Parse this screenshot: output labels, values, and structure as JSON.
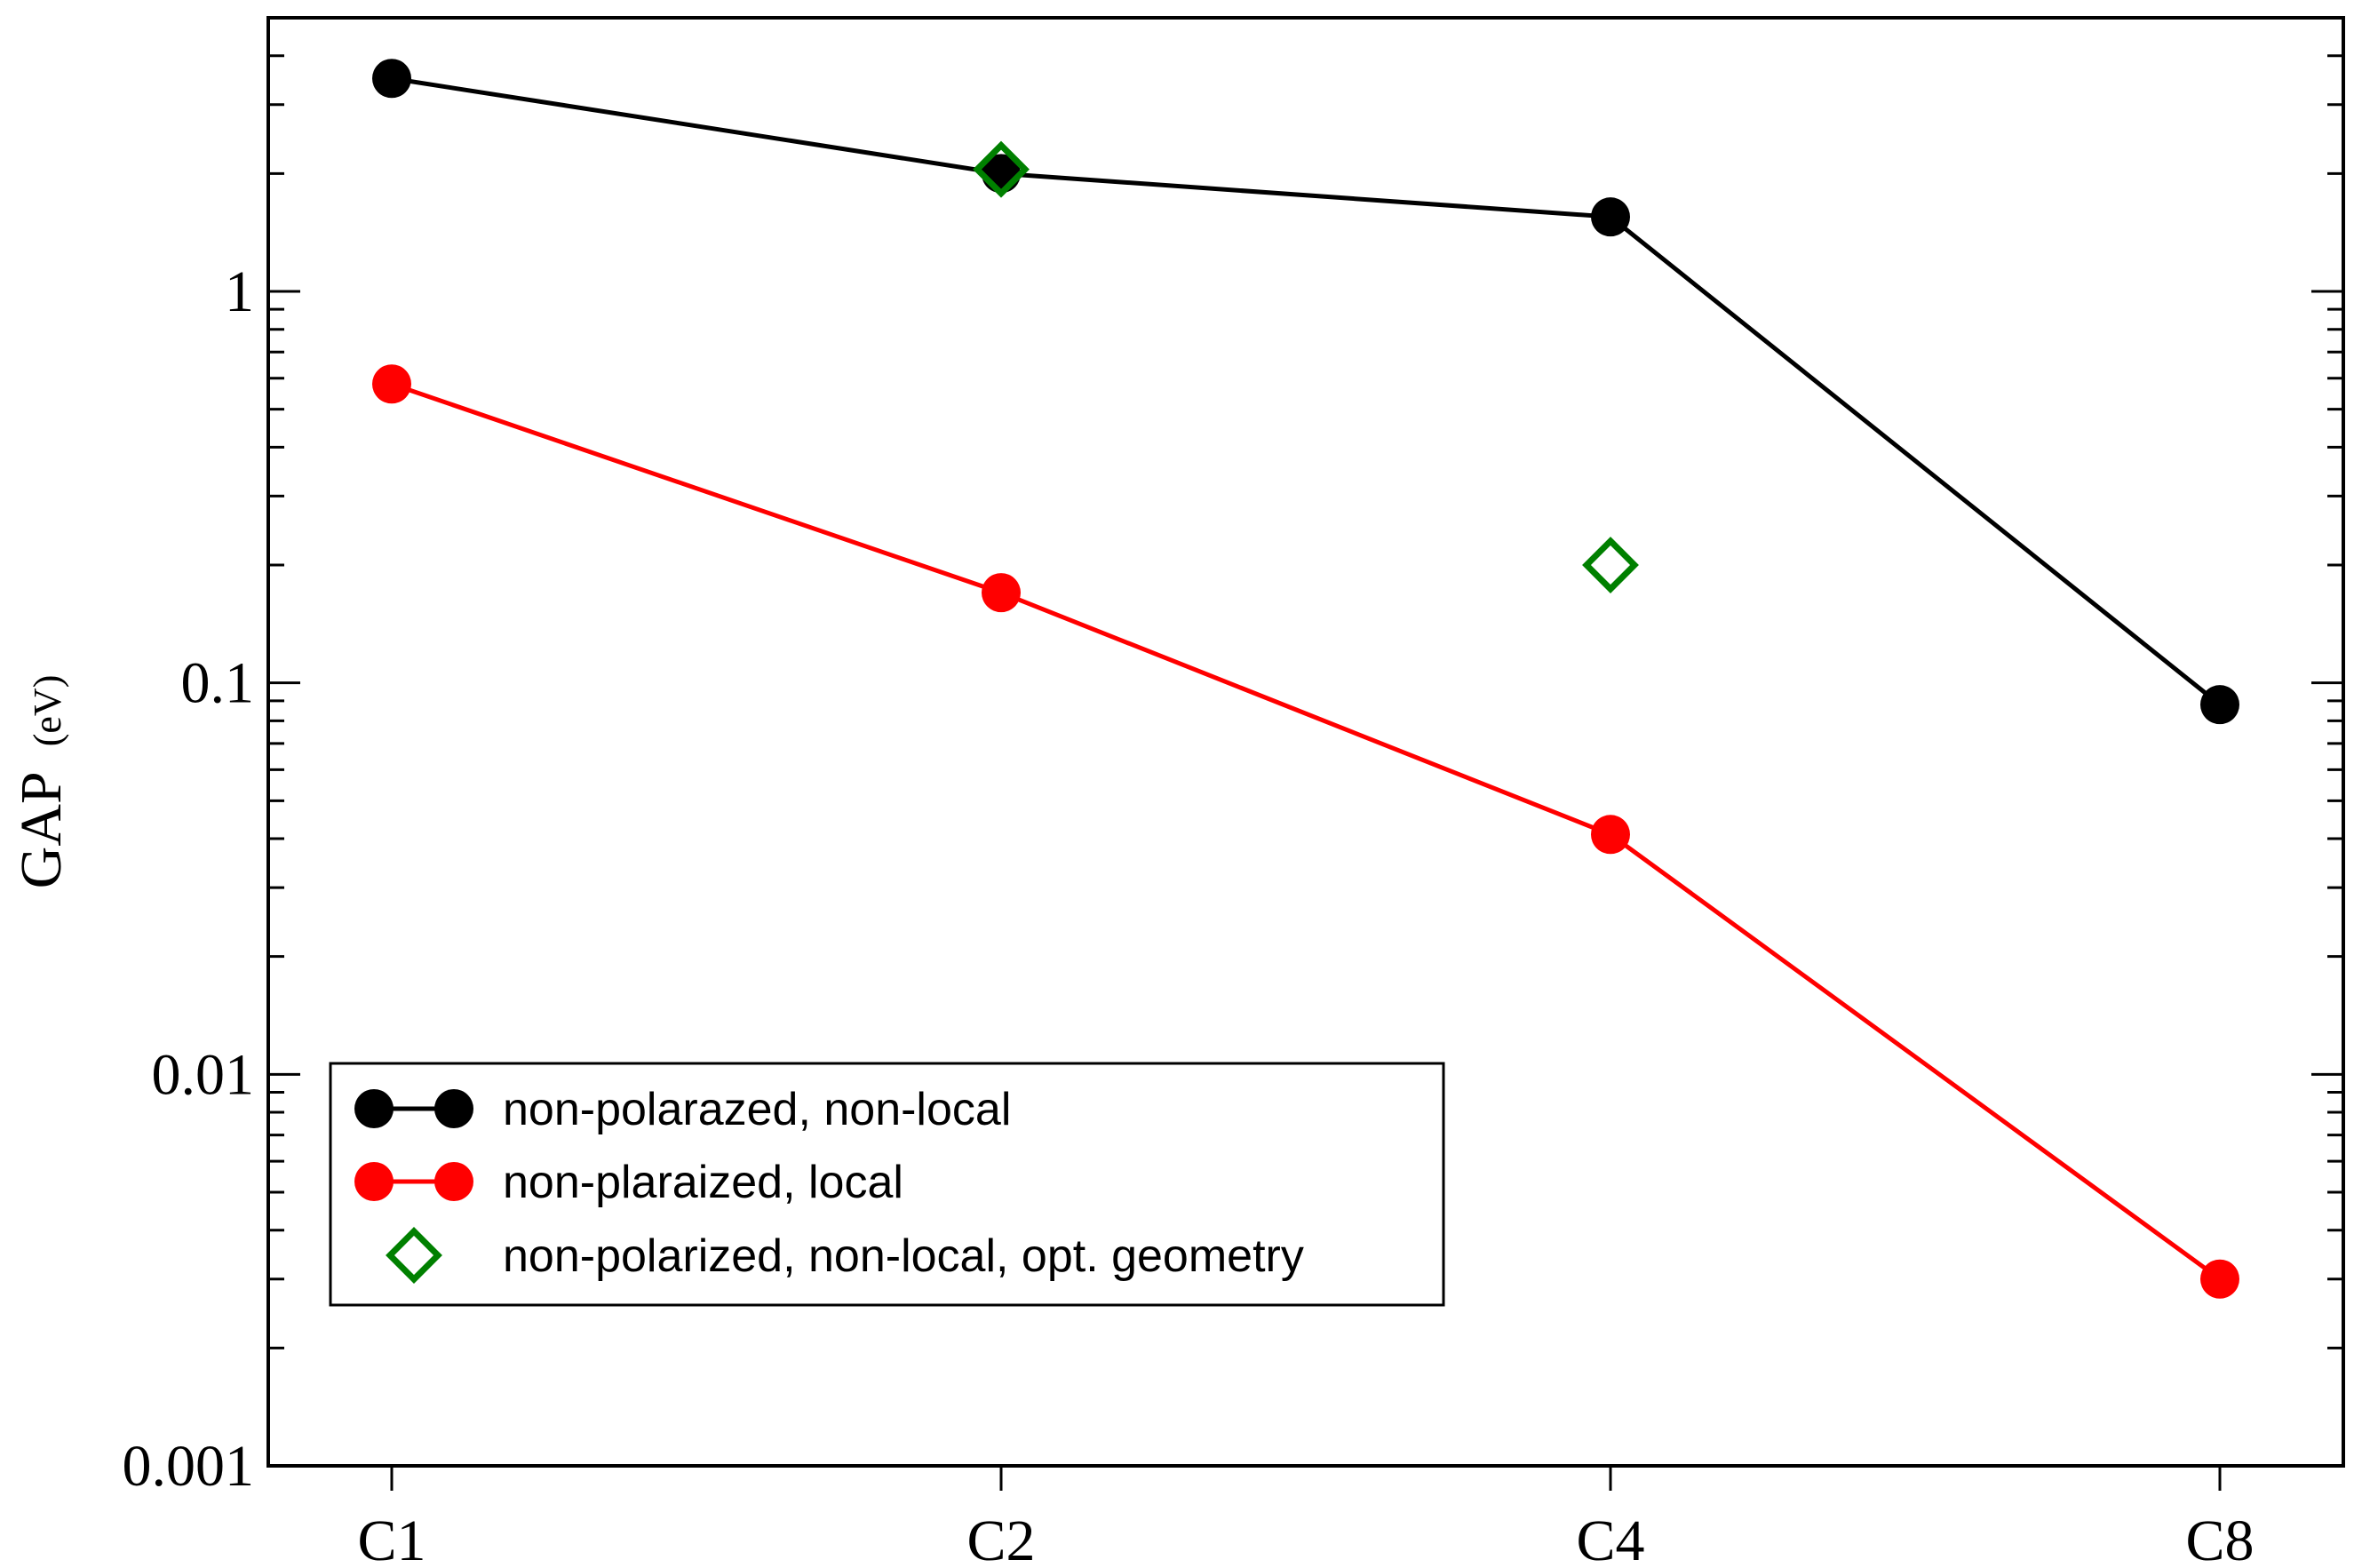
{
  "chart_data": {
    "type": "line",
    "title": "",
    "xlabel": "",
    "ylabel": "GAP",
    "ylabel_unit": "(eV)",
    "yscale": "log",
    "ylim": [
      0.001,
      5.0
    ],
    "categories": [
      "C1",
      "C2",
      "C4",
      "C8"
    ],
    "yticks": [
      0.001,
      0.01,
      0.1,
      1
    ],
    "ytick_labels": [
      "0.001",
      "0.01",
      "0.1",
      "1"
    ],
    "grid": false,
    "legend_position": "bottom-left",
    "series": [
      {
        "name": "non-polarazed, non-local",
        "color": "#000000",
        "marker": "filled-circle",
        "line": true,
        "x": [
          "C1",
          "C2",
          "C4",
          "C8"
        ],
        "values": [
          3.5,
          2.0,
          1.55,
          0.088
        ]
      },
      {
        "name": "non-plaraized, local",
        "color": "#ff0000",
        "marker": "filled-circle",
        "line": true,
        "x": [
          "C1",
          "C2",
          "C4",
          "C8"
        ],
        "values": [
          0.58,
          0.17,
          0.041,
          0.003
        ]
      },
      {
        "name": "non-polarized, non-local, opt. geometry",
        "color": "#008000",
        "marker": "open-diamond",
        "line": false,
        "x": [
          "C2",
          "C4"
        ],
        "values": [
          2.05,
          0.2
        ]
      }
    ]
  }
}
